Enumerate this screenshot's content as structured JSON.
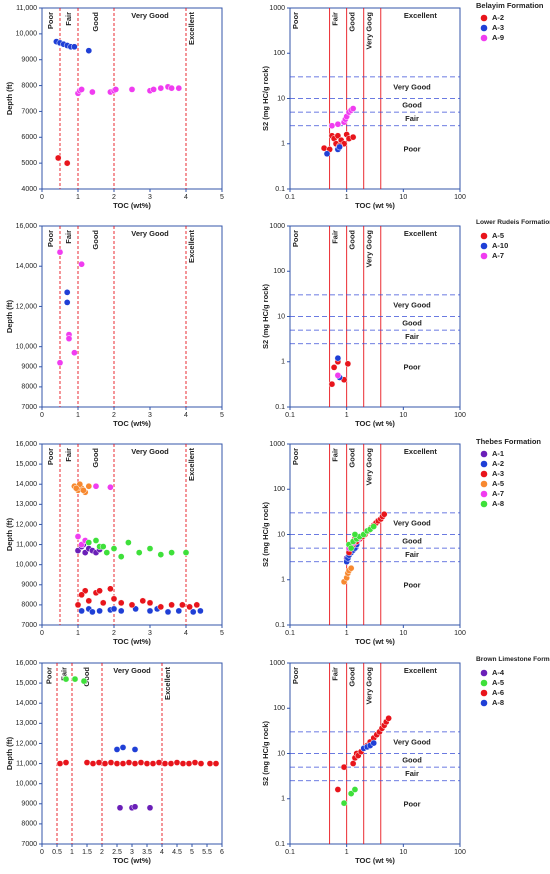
{
  "chart_data": [
    {
      "type": "scatter",
      "xlabel": "TOC (wt%)",
      "ylabel": "Depth (ft)",
      "xlim": [
        0,
        5
      ],
      "xticks": [
        0,
        1,
        2,
        3,
        4,
        5
      ],
      "ylim": [
        4000,
        11000
      ],
      "yticks": [
        4000,
        5000,
        6000,
        7000,
        8000,
        9000,
        {
          "value": 10000,
          "label": "10,000"
        },
        {
          "value": 11000,
          "label": "11,000"
        }
      ],
      "thresholds": [
        0.5,
        1,
        2,
        4
      ],
      "zones": [
        "Poor",
        "Fair",
        "Good",
        "Very Good",
        "Excellent"
      ],
      "series": [
        {
          "color": "#e8141b",
          "x": [
            0.45,
            0.7
          ],
          "values": [
            5200,
            5000
          ]
        },
        {
          "color": "#1f3fd6",
          "x": [
            0.4,
            0.5,
            0.6,
            0.7,
            0.8,
            0.9,
            1.3
          ],
          "values": [
            9700,
            9650,
            9600,
            9550,
            9500,
            9500,
            9350
          ]
        },
        {
          "color": "#f03cf0",
          "x": [
            1.0,
            1.05,
            1.1,
            1.4,
            1.9,
            2.0,
            2.05,
            2.5,
            3.0,
            3.1,
            3.3,
            3.5,
            3.6,
            3.8
          ],
          "values": [
            7700,
            7800,
            7850,
            7750,
            7750,
            7800,
            7850,
            7850,
            7800,
            7850,
            7900,
            7950,
            7900,
            7900
          ]
        }
      ]
    },
    {
      "type": "scatter",
      "log": true,
      "title": "Belayim Formation",
      "xlabel": "TOC (wt %)",
      "ylabel": "S2 (mg HC/g rock)",
      "xlim": [
        0.1,
        100
      ],
      "xticks": [
        0.1,
        1,
        10,
        100
      ],
      "ylim": [
        0.1,
        1000
      ],
      "yticks": [
        0.1,
        1,
        10,
        100,
        1000
      ],
      "thresholds": [
        0.5,
        1,
        2,
        4
      ],
      "zones": [
        "Poor",
        "Fair",
        "Good",
        "Very Goog",
        "Excellent"
      ],
      "levels": [
        2.5,
        5,
        10,
        30
      ],
      "level_zones": [
        "Very Good",
        "Good",
        "Fair",
        "Poor"
      ],
      "series": [
        {
          "name": "A-2",
          "color": "#e8141b",
          "x": [
            0.4,
            0.5,
            0.55,
            0.6,
            0.7,
            0.8,
            0.9,
            1.0,
            1.1,
            1.3,
            0.65,
            0.75
          ],
          "values": [
            0.8,
            0.75,
            1.5,
            1.3,
            1.5,
            1.2,
            1.0,
            1.6,
            1.3,
            1.4,
            1.0,
            0.9
          ]
        },
        {
          "name": "A-3",
          "color": "#1f3fd6",
          "x": [
            0.45,
            0.7,
            0.75
          ],
          "values": [
            0.6,
            0.75,
            0.85
          ]
        },
        {
          "name": "A-9",
          "color": "#f03cf0",
          "x": [
            0.55,
            0.7,
            0.9,
            0.95,
            1.0,
            1.1,
            1.2,
            1.3
          ],
          "values": [
            2.5,
            2.7,
            3.0,
            3.5,
            4.0,
            5.0,
            5.5,
            6.0
          ]
        }
      ]
    },
    {
      "type": "scatter",
      "xlabel": "TOC (wt%)",
      "ylabel": "Depth (ft)",
      "xlim": [
        0,
        5
      ],
      "xticks": [
        0,
        1,
        2,
        3,
        4,
        5
      ],
      "ylim": [
        7000,
        16000
      ],
      "yticks": [
        7000,
        8000,
        9000,
        {
          "value": 10000,
          "label": "10,000"
        },
        {
          "value": 12000,
          "label": "12,000"
        },
        {
          "value": 14000,
          "label": "14,000"
        },
        {
          "value": 16000,
          "label": "16,000"
        }
      ],
      "thresholds": [
        0.5,
        1,
        2,
        4
      ],
      "zones": [
        "Poor",
        "Fair",
        "Good",
        "Very Good",
        "Excellent"
      ],
      "series": [
        {
          "color": "#e8141b",
          "x": [],
          "values": []
        },
        {
          "color": "#1f3fd6",
          "x": [
            0.7,
            0.7
          ],
          "values": [
            12700,
            12200
          ]
        },
        {
          "color": "#f03cf0",
          "x": [
            0.5,
            0.75,
            0.75,
            0.9,
            0.5,
            1.1
          ],
          "values": [
            14700,
            10600,
            10400,
            9700,
            9200,
            14100
          ]
        }
      ]
    },
    {
      "type": "scatter",
      "log": true,
      "title": "Lower Rudeis Formation",
      "xlabel": "TOC (wt %)",
      "ylabel": "S2 (mg HC/g rock)",
      "xlim": [
        0.1,
        100
      ],
      "xticks": [
        0.1,
        1,
        10,
        100
      ],
      "ylim": [
        0.1,
        1000
      ],
      "yticks": [
        0.1,
        1,
        10,
        100,
        1000
      ],
      "thresholds": [
        0.5,
        1,
        2,
        4
      ],
      "zones": [
        "Poor",
        "Fair",
        "Good",
        "Very Goog",
        "Excellent"
      ],
      "levels": [
        2.5,
        5,
        10,
        30
      ],
      "level_zones": [
        "Very Good",
        "Good",
        "Fair",
        "Poor"
      ],
      "series": [
        {
          "name": "A-5",
          "color": "#e8141b",
          "x": [
            0.55,
            0.6,
            0.9,
            1.05,
            0.7
          ],
          "values": [
            0.32,
            0.75,
            0.4,
            0.9,
            1.0
          ]
        },
        {
          "name": "A-10",
          "color": "#1f3fd6",
          "x": [
            0.7,
            0.75
          ],
          "values": [
            1.2,
            0.45
          ]
        },
        {
          "name": "A-7",
          "color": "#f03cf0",
          "x": [
            0.7
          ],
          "values": [
            0.5
          ]
        }
      ]
    },
    {
      "type": "scatter",
      "xlabel": "TOC (wt%)",
      "ylabel": "Depth (ft)",
      "xlim": [
        0,
        5
      ],
      "xticks": [
        0,
        1,
        2,
        3,
        4,
        5
      ],
      "ylim": [
        7000,
        16000
      ],
      "yticks": [
        7000,
        8000,
        9000,
        {
          "value": 10000,
          "label": "10,000"
        },
        {
          "value": 11000,
          "label": "11,000"
        },
        {
          "value": 12000,
          "label": "12,000"
        },
        {
          "value": 13000,
          "label": "13,000"
        },
        {
          "value": 14000,
          "label": "14,000"
        },
        {
          "value": 15000,
          "label": "15,000"
        },
        {
          "value": 16000,
          "label": "16,000"
        }
      ],
      "thresholds": [
        0.5,
        1,
        2,
        4
      ],
      "zones": [
        "Poor",
        "Fair",
        "Good",
        "Very Good",
        "Excellent"
      ],
      "series": [
        {
          "color": "#6a1fb8",
          "x": [
            1.0,
            1.1,
            1.2,
            1.3,
            1.4,
            1.5,
            1.6,
            1.15
          ],
          "values": [
            10700,
            10900,
            10600,
            10800,
            10700,
            10600,
            10750,
            11000
          ]
        },
        {
          "color": "#1f3fd6",
          "x": [
            1.1,
            1.3,
            1.6,
            1.9,
            2.2,
            2.6,
            3.0,
            3.2,
            3.5,
            3.8,
            4.2,
            4.4,
            2.0,
            1.4
          ],
          "values": [
            7700,
            7800,
            7700,
            7750,
            7700,
            7800,
            7700,
            7800,
            7650,
            7700,
            7650,
            7700,
            7800,
            7650
          ]
        },
        {
          "color": "#e8141b",
          "x": [
            1.0,
            1.2,
            1.3,
            1.5,
            1.7,
            1.9,
            2.0,
            2.2,
            2.5,
            2.8,
            3.0,
            3.3,
            3.6,
            3.9,
            4.1,
            4.3,
            1.1,
            1.6
          ],
          "values": [
            8000,
            8700,
            8200,
            8600,
            8100,
            8800,
            8300,
            8100,
            8000,
            8200,
            8100,
            7900,
            8000,
            8000,
            7900,
            8000,
            8500,
            8700
          ]
        },
        {
          "color": "#f7882f",
          "x": [
            0.9,
            1.0,
            1.1,
            1.2,
            1.3,
            1.05,
            1.15,
            0.95
          ],
          "values": [
            13900,
            13700,
            13800,
            13600,
            13900,
            14000,
            13700,
            13800
          ]
        },
        {
          "color": "#f03cf0",
          "x": [
            1.0,
            1.1,
            1.5,
            1.9,
            1.2
          ],
          "values": [
            11400,
            11000,
            13900,
            13850,
            11200
          ]
        },
        {
          "color": "#3ee03a",
          "x": [
            1.3,
            1.5,
            1.6,
            1.8,
            2.0,
            2.2,
            2.4,
            2.7,
            3.0,
            3.3,
            3.6,
            4.0,
            1.7
          ],
          "values": [
            11100,
            11200,
            10900,
            10600,
            10800,
            10400,
            11100,
            10600,
            10800,
            10500,
            10600,
            10600,
            10900
          ]
        }
      ]
    },
    {
      "type": "scatter",
      "log": true,
      "title": "Thebes Formation",
      "xlabel": "TOC (wt %)",
      "ylabel": "S2 (mg HC/g rock)",
      "xlim": [
        0.1,
        100
      ],
      "xticks": [
        0.1,
        1,
        10,
        100
      ],
      "ylim": [
        0.1,
        1000
      ],
      "yticks": [
        0.1,
        1,
        10,
        100,
        1000
      ],
      "thresholds": [
        0.5,
        1,
        2,
        4
      ],
      "zones": [
        "Poor",
        "Fair",
        "Good",
        "Very Goog",
        "Excellent"
      ],
      "levels": [
        2.5,
        5,
        10,
        30
      ],
      "level_zones": [
        "Very Good",
        "Good",
        "Fair",
        "Poor"
      ],
      "series": [
        {
          "name": "A-1",
          "color": "#6a1fb8",
          "x": [
            1.0,
            1.1,
            1.2
          ],
          "values": [
            3,
            4,
            5
          ]
        },
        {
          "name": "A-2",
          "color": "#1f3fd6",
          "x": [
            1.0,
            1.05,
            1.1,
            1.2,
            1.3,
            1.4,
            1.5
          ],
          "values": [
            2.5,
            3.0,
            3.5,
            4,
            4.5,
            5,
            6
          ]
        },
        {
          "name": "A-3",
          "color": "#e8141b",
          "x": [
            1.1,
            1.3,
            1.5,
            1.7,
            1.9,
            2.1,
            2.4,
            2.7,
            3.0,
            3.3,
            3.6,
            4.0,
            4.3,
            4.6,
            1.2,
            1.4
          ],
          "values": [
            4,
            6,
            7,
            8,
            9,
            10,
            12,
            14,
            16,
            18,
            20,
            22,
            25,
            28,
            5,
            8
          ]
        },
        {
          "name": "A-5",
          "color": "#f7882f",
          "x": [
            0.9,
            1.0,
            1.05,
            1.1,
            1.2
          ],
          "values": [
            0.9,
            1.1,
            1.4,
            1.6,
            1.8
          ]
        },
        {
          "name": "A-7",
          "color": "#f03cf0",
          "x": [
            1.1,
            1.2,
            1.3,
            1.6
          ],
          "values": [
            5,
            6,
            6.5,
            8
          ]
        },
        {
          "name": "A-8",
          "color": "#3ee03a",
          "x": [
            1.1,
            1.3,
            1.5,
            1.7,
            2.0,
            2.3,
            2.6,
            3.0,
            1.2,
            1.4
          ],
          "values": [
            6,
            7,
            8,
            9,
            10,
            12,
            13,
            15,
            5,
            10
          ]
        }
      ]
    },
    {
      "type": "scatter",
      "xlabel": "TOC (wt%)",
      "ylabel": "Depth (ft)",
      "xlim": [
        0,
        6
      ],
      "xticks": [
        0,
        0.5,
        1,
        1.5,
        2,
        2.5,
        3,
        3.5,
        4,
        4.5,
        5,
        5.5,
        6
      ],
      "ylim": [
        7000,
        16000
      ],
      "yticks": [
        7000,
        8000,
        9000,
        {
          "value": 10000,
          "label": "10,000"
        },
        {
          "value": 11000,
          "label": "11,000"
        },
        {
          "value": 12000,
          "label": "12,000"
        },
        {
          "value": 13000,
          "label": "13,000"
        },
        {
          "value": 14000,
          "label": "14,000"
        },
        {
          "value": 15000,
          "label": "15,000"
        },
        {
          "value": 16000,
          "label": "16,000"
        }
      ],
      "thresholds": [
        0.5,
        1,
        2,
        4
      ],
      "zones": [
        "Poor",
        "Fair",
        "Good",
        "Very Good",
        "Excellent"
      ],
      "series": [
        {
          "color": "#6a1fb8",
          "x": [
            2.6,
            3.0,
            3.1,
            3.6
          ],
          "values": [
            8800,
            8800,
            8850,
            8800
          ]
        },
        {
          "color": "#3ee03a",
          "x": [
            0.8,
            1.1,
            1.4
          ],
          "values": [
            15200,
            15200,
            15100
          ]
        },
        {
          "color": "#e8141b",
          "x": [
            0.6,
            0.8,
            1.5,
            1.7,
            1.9,
            2.1,
            2.3,
            2.5,
            2.7,
            2.9,
            3.1,
            3.3,
            3.5,
            3.7,
            3.9,
            4.1,
            4.3,
            4.5,
            4.7,
            4.9,
            5.1,
            5.3,
            5.6,
            5.8
          ],
          "values": [
            11000,
            11050,
            11050,
            11000,
            11050,
            11000,
            11050,
            11000,
            11000,
            11050,
            11000,
            11050,
            11000,
            11000,
            11050,
            11000,
            11000,
            11050,
            11000,
            11000,
            11050,
            11000,
            11000,
            11000
          ]
        },
        {
          "color": "#1f3fd6",
          "x": [
            2.5,
            2.7,
            3.1
          ],
          "values": [
            11700,
            11800,
            11700
          ]
        }
      ]
    },
    {
      "type": "scatter",
      "log": true,
      "title": "Brown Limestone Formation",
      "xlabel": "TOC (wt %)",
      "ylabel": "S2 (mg HC/g rock)",
      "xlim": [
        0.1,
        100
      ],
      "xticks": [
        0.1,
        1,
        10,
        100
      ],
      "ylim": [
        0.1,
        1000
      ],
      "yticks": [
        0.1,
        1,
        10,
        100,
        1000
      ],
      "thresholds": [
        0.5,
        1,
        2,
        4
      ],
      "zones": [
        "Poor",
        "Fair",
        "Good",
        "Very Goog",
        "Excellent"
      ],
      "levels": [
        2.5,
        5,
        10,
        30
      ],
      "level_zones": [
        "Very Good",
        "Good",
        "Fair",
        "Poor"
      ],
      "series": [
        {
          "name": "A-4",
          "color": "#6a1fb8",
          "x": [],
          "values": []
        },
        {
          "name": "A-5",
          "color": "#3ee03a",
          "x": [
            0.9,
            1.2,
            1.4
          ],
          "values": [
            0.8,
            1.3,
            1.6
          ]
        },
        {
          "name": "A-6",
          "color": "#e8141b",
          "x": [
            0.7,
            0.9,
            1.3,
            1.4,
            1.5,
            1.6,
            1.8,
            2.0,
            2.3,
            2.6,
            3.0,
            3.4,
            3.8,
            4.2,
            4.6,
            5.0,
            5.5
          ],
          "values": [
            1.6,
            5,
            6,
            8,
            10,
            9,
            11,
            13,
            15,
            18,
            22,
            26,
            30,
            36,
            42,
            50,
            60
          ]
        },
        {
          "name": "A-8",
          "color": "#1f3fd6",
          "x": [
            2.0,
            2.3,
            2.6,
            3.0
          ],
          "values": [
            13,
            14,
            15,
            17
          ]
        }
      ]
    }
  ]
}
